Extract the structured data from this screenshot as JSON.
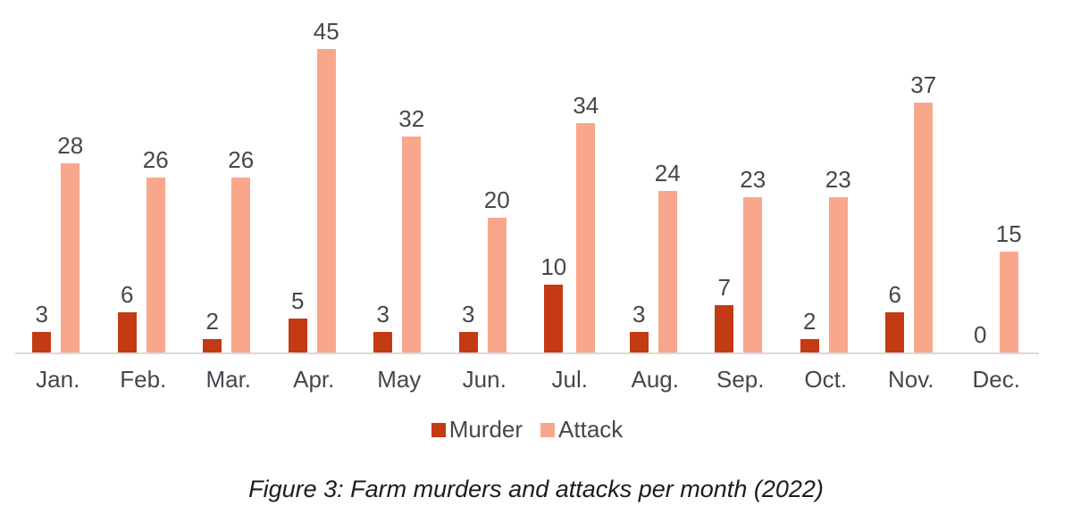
{
  "chart_data": {
    "type": "bar",
    "categories": [
      "Jan.",
      "Feb.",
      "Mar.",
      "Apr.",
      "May",
      "Jun.",
      "Jul.",
      "Aug.",
      "Sep.",
      "Oct.",
      "Nov.",
      "Dec."
    ],
    "series": [
      {
        "name": "Murder",
        "color": "#c43a14",
        "values": [
          3,
          6,
          2,
          5,
          3,
          3,
          10,
          3,
          7,
          2,
          6,
          0
        ]
      },
      {
        "name": "Attack",
        "color": "#f9a78c",
        "values": [
          28,
          26,
          26,
          45,
          32,
          20,
          34,
          24,
          23,
          23,
          37,
          15
        ]
      }
    ],
    "title": "",
    "caption": "Figure 3: Farm murders and attacks per month (2022)",
    "xlabel": "",
    "ylabel": "",
    "ylim": [
      0,
      45
    ],
    "grid": false,
    "data_labels": true,
    "legend_position": "bottom",
    "axis_line_color": "#d9d9d9",
    "label_color": "#45474e"
  }
}
